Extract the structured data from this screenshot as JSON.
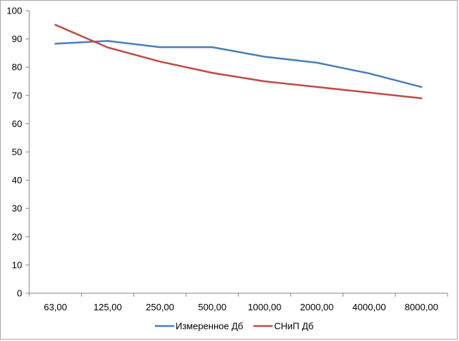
{
  "chart_data": {
    "type": "line",
    "categories": [
      "63,00",
      "125,00",
      "250,00",
      "500,00",
      "1000,00",
      "2000,00",
      "4000,00",
      "8000,00"
    ],
    "series": [
      {
        "name": "Измеренное Дб",
        "color": "#4a7ebb",
        "values": [
          88.3,
          89.3,
          87.1,
          87.1,
          83.7,
          81.6,
          77.8,
          73.0
        ]
      },
      {
        "name": "СНиП Дб",
        "color": "#be4b48",
        "values": [
          95.0,
          87.0,
          82.0,
          78.0,
          75.0,
          73.0,
          71.0,
          69.0
        ]
      }
    ],
    "ylim": [
      0,
      100
    ],
    "yticks": [
      0,
      10,
      20,
      30,
      40,
      50,
      60,
      70,
      80,
      90,
      100
    ],
    "grid": false,
    "legend": "bottom",
    "title": "",
    "xlabel": "",
    "ylabel": ""
  }
}
